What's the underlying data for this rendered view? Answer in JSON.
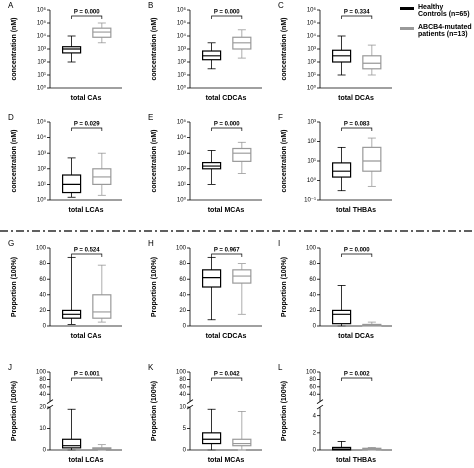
{
  "legend": [
    {
      "name": "Healthy Controls (n=65)",
      "color": "#000000"
    },
    {
      "name": "ABCB4-mutated patients (n=13)",
      "color": "#999999"
    }
  ],
  "chart_data": [
    {
      "type": "box",
      "panel": "A",
      "ylabel": "concentration (nM)",
      "xlabel": "total CAs",
      "annotation": "P = 0.000",
      "log": true,
      "ylim": [
        1,
        1000000
      ],
      "yticks": [
        {
          "value": 1,
          "label": "10⁰"
        },
        {
          "value": 10,
          "label": "10¹"
        },
        {
          "value": 100,
          "label": "10²"
        },
        {
          "value": 1000,
          "label": "10³"
        },
        {
          "value": 10000,
          "label": "10⁴"
        },
        {
          "value": 100000,
          "label": "10⁵"
        },
        {
          "value": 1000000,
          "label": "10⁶"
        }
      ],
      "boxes": [
        {
          "min": 100,
          "q1": 500,
          "median": 1000,
          "q3": 1500,
          "max": 10000
        },
        {
          "min": 3000,
          "q1": 8000,
          "median": 20000,
          "q3": 40000,
          "max": 100000
        }
      ]
    },
    {
      "type": "box",
      "panel": "B",
      "ylabel": "concentration (nM)",
      "xlabel": "total CDCAs",
      "annotation": "P = 0.000",
      "log": true,
      "ylim": [
        1,
        1000000
      ],
      "yticks": [
        {
          "value": 1,
          "label": "10⁰"
        },
        {
          "value": 10,
          "label": "10¹"
        },
        {
          "value": 100,
          "label": "10²"
        },
        {
          "value": 1000,
          "label": "10³"
        },
        {
          "value": 10000,
          "label": "10⁴"
        },
        {
          "value": 100000,
          "label": "10⁵"
        },
        {
          "value": 1000000,
          "label": "10⁶"
        }
      ],
      "boxes": [
        {
          "min": 30,
          "q1": 150,
          "median": 300,
          "q3": 700,
          "max": 3000
        },
        {
          "min": 200,
          "q1": 1000,
          "median": 3000,
          "q3": 8000,
          "max": 30000
        }
      ]
    },
    {
      "type": "box",
      "panel": "C",
      "ylabel": "concentration (nM)",
      "xlabel": "total DCAs",
      "annotation": "P = 0.334",
      "log": true,
      "ylim": [
        1,
        1000000
      ],
      "yticks": [
        {
          "value": 1,
          "label": "10⁰"
        },
        {
          "value": 10,
          "label": "10¹"
        },
        {
          "value": 100,
          "label": "10²"
        },
        {
          "value": 1000,
          "label": "10³"
        },
        {
          "value": 10000,
          "label": "10⁴"
        },
        {
          "value": 100000,
          "label": "10⁵"
        },
        {
          "value": 1000000,
          "label": "10⁶"
        }
      ],
      "boxes": [
        {
          "min": 10,
          "q1": 100,
          "median": 300,
          "q3": 800,
          "max": 10000
        },
        {
          "min": 10,
          "q1": 30,
          "median": 80,
          "q3": 300,
          "max": 2000
        }
      ]
    },
    {
      "type": "box",
      "panel": "D",
      "ylabel": "concentration (nM)",
      "xlabel": "total LCAs",
      "annotation": "P = 0.029",
      "log": true,
      "ylim": [
        1,
        100000
      ],
      "yticks": [
        {
          "value": 1,
          "label": "10⁰"
        },
        {
          "value": 10,
          "label": "10¹"
        },
        {
          "value": 100,
          "label": "10²"
        },
        {
          "value": 1000,
          "label": "10³"
        },
        {
          "value": 10000,
          "label": "10⁴"
        },
        {
          "value": 100000,
          "label": "10⁵"
        }
      ],
      "boxes": [
        {
          "min": 1.5,
          "q1": 3,
          "median": 10,
          "q3": 40,
          "max": 500
        },
        {
          "min": 2,
          "q1": 10,
          "median": 30,
          "q3": 100,
          "max": 1000
        }
      ]
    },
    {
      "type": "box",
      "panel": "E",
      "ylabel": "concentration (nM)",
      "xlabel": "total MCAs",
      "annotation": "P = 0.000",
      "log": true,
      "ylim": [
        1,
        100000
      ],
      "yticks": [
        {
          "value": 1,
          "label": "10⁰"
        },
        {
          "value": 10,
          "label": "10¹"
        },
        {
          "value": 100,
          "label": "10²"
        },
        {
          "value": 1000,
          "label": "10³"
        },
        {
          "value": 10000,
          "label": "10⁴"
        },
        {
          "value": 100000,
          "label": "10⁵"
        }
      ],
      "boxes": [
        {
          "min": 10,
          "q1": 100,
          "median": 150,
          "q3": 250,
          "max": 1500
        },
        {
          "min": 50,
          "q1": 300,
          "median": 1000,
          "q3": 2000,
          "max": 5000
        }
      ]
    },
    {
      "type": "box",
      "panel": "F",
      "ylabel": "concentration (nM)",
      "xlabel": "total THBAs",
      "annotation": "P = 0.083",
      "log": true,
      "ylim": [
        0.1,
        1000
      ],
      "yticks": [
        {
          "value": 0.1,
          "label": "10⁻¹"
        },
        {
          "value": 1,
          "label": "10⁰"
        },
        {
          "value": 10,
          "label": "10¹"
        },
        {
          "value": 100,
          "label": "10²"
        },
        {
          "value": 1000,
          "label": "10³"
        }
      ],
      "boxes": [
        {
          "min": 0.3,
          "q1": 1.5,
          "median": 3,
          "q3": 8,
          "max": 50
        },
        {
          "min": 0.5,
          "q1": 3,
          "median": 10,
          "q3": 50,
          "max": 150
        }
      ]
    },
    {
      "type": "box",
      "panel": "G",
      "ylabel": "Proportion (100%)",
      "xlabel": "total CAs",
      "annotation": "P = 0.524",
      "log": false,
      "ylim": [
        0,
        100
      ],
      "yticks": [
        0,
        20,
        40,
        60,
        80,
        100
      ],
      "boxes": [
        {
          "min": 2,
          "q1": 10,
          "median": 15,
          "q3": 20,
          "max": 88
        },
        {
          "min": 5,
          "q1": 10,
          "median": 18,
          "q3": 40,
          "max": 78
        }
      ]
    },
    {
      "type": "box",
      "panel": "H",
      "ylabel": "Proportion (100%)",
      "xlabel": "total CDCAs",
      "annotation": "P = 0.967",
      "log": false,
      "ylim": [
        0,
        100
      ],
      "yticks": [
        0,
        20,
        40,
        60,
        80,
        100
      ],
      "boxes": [
        {
          "min": 8,
          "q1": 50,
          "median": 62,
          "q3": 72,
          "max": 88
        },
        {
          "min": 15,
          "q1": 55,
          "median": 64,
          "q3": 72,
          "max": 80
        }
      ]
    },
    {
      "type": "box",
      "panel": "I",
      "ylabel": "Proportion (100%)",
      "xlabel": "total DCAs",
      "annotation": "P = 0.000",
      "log": false,
      "ylim": [
        0,
        100
      ],
      "yticks": [
        0,
        20,
        40,
        60,
        80,
        100
      ],
      "boxes": [
        {
          "min": 0,
          "q1": 3,
          "median": 15,
          "q3": 20,
          "max": 52
        },
        {
          "min": 0,
          "q1": 0,
          "median": 1,
          "q3": 2,
          "max": 5
        }
      ]
    },
    {
      "type": "box",
      "panel": "J",
      "ylabel": "Proportion (100%)",
      "xlabel": "total LCAs",
      "annotation": "P = 0.001",
      "log": false,
      "ylim": [
        0,
        20
      ],
      "yticks": [
        0,
        10,
        20
      ],
      "break": {
        "ylim": [
          20,
          100
        ],
        "yticks": [
          40,
          60,
          80,
          100
        ]
      },
      "boxes": [
        {
          "min": 0,
          "q1": 1,
          "median": 2,
          "q3": 5,
          "max": 19
        },
        {
          "min": 0,
          "q1": 0.3,
          "median": 0.5,
          "q3": 1,
          "max": 2.5
        }
      ]
    },
    {
      "type": "box",
      "panel": "K",
      "ylabel": "Proportion (100%)",
      "xlabel": "total MCAs",
      "annotation": "P = 0.042",
      "log": false,
      "ylim": [
        0,
        10
      ],
      "yticks": [
        0,
        5,
        10
      ],
      "break": {
        "ylim": [
          20,
          100
        ],
        "yticks": [
          40,
          60,
          80,
          100
        ]
      },
      "boxes": [
        {
          "min": 0,
          "q1": 1.5,
          "median": 2.5,
          "q3": 4,
          "max": 9.5
        },
        {
          "min": 0,
          "q1": 1,
          "median": 1.5,
          "q3": 2.5,
          "max": 9
        }
      ]
    },
    {
      "type": "box",
      "panel": "L",
      "ylabel": "Proportion (100%)",
      "xlabel": "total THBAs",
      "annotation": "P = 0.002",
      "log": false,
      "ylim": [
        0,
        5
      ],
      "yticks": [
        0,
        2,
        4
      ],
      "break": {
        "ylim": [
          20,
          100
        ],
        "yticks": [
          40,
          60,
          80,
          100
        ]
      },
      "boxes": [
        {
          "min": 0,
          "q1": 0,
          "median": 0.1,
          "q3": 0.3,
          "max": 1
        },
        {
          "min": 0,
          "q1": 0.05,
          "median": 0.1,
          "q3": 0.2,
          "max": 0.3
        }
      ]
    }
  ]
}
